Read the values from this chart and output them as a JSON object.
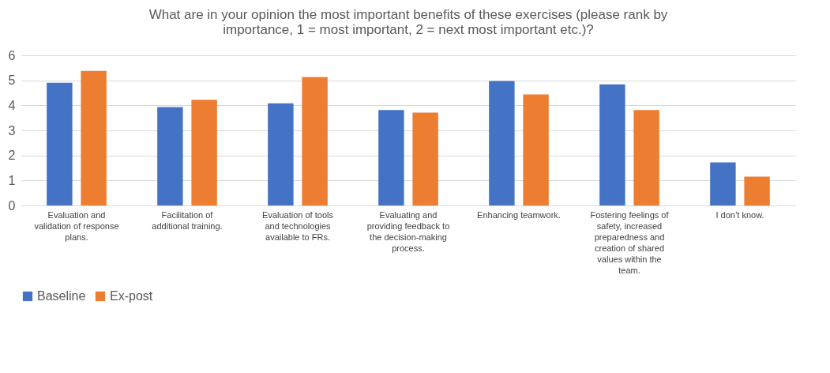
{
  "chart_data": {
    "type": "bar",
    "title": "What are in your opinion the most important benefits of these exercises (please rank by importance, 1 = most important, 2 = next most important etc.)?",
    "categories": [
      "Evaluation and validation of response plans.",
      "Facilitation of additional training.",
      "Evaluation of tools and technologies available to FRs.",
      "Evaluating and providing feedback to the decision-making process.",
      "Enhancing teamwork.",
      "Fostering feelings of safety, increased preparedness and creation of shared values within the team.",
      "I don’t know."
    ],
    "series": [
      {
        "name": "Baseline",
        "color": "#4472c4",
        "values": [
          4.9,
          3.93,
          4.08,
          3.81,
          4.97,
          4.84,
          1.72
        ]
      },
      {
        "name": "Ex-post",
        "color": "#ed7d31",
        "values": [
          5.38,
          4.22,
          5.13,
          3.71,
          4.44,
          3.81,
          1.15
        ]
      }
    ],
    "ylim": [
      0,
      6
    ],
    "yticks": [
      0,
      1,
      2,
      3,
      4,
      5,
      6
    ],
    "grid": "y",
    "legend": "bottom"
  }
}
